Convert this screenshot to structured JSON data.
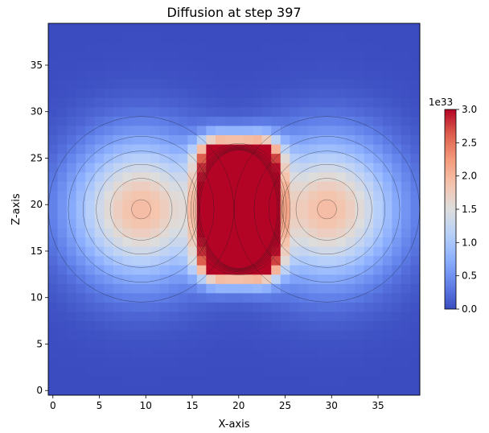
{
  "chart_data": {
    "type": "heatmap",
    "title": "Diffusion at step 397",
    "xlabel": "X-axis",
    "ylabel": "Z-axis",
    "grid_size": [
      40,
      40
    ],
    "xlim": [
      -0.5,
      39.5
    ],
    "ylim": [
      -0.5,
      39.5
    ],
    "xticks": [
      0,
      5,
      10,
      15,
      20,
      25,
      30,
      35
    ],
    "yticks": [
      0,
      5,
      10,
      15,
      20,
      25,
      30,
      35
    ],
    "colormap": "coolwarm",
    "vmin": 0,
    "vmax": 3.0,
    "colorbar": {
      "ticks": [
        0.0,
        0.5,
        1.0,
        1.5,
        2.0,
        2.5,
        3.0
      ],
      "tick_labels": [
        "0.0",
        "0.5",
        "1.0",
        "1.5",
        "2.0",
        "2.5",
        "3.0"
      ],
      "offset_label": "1e33"
    },
    "sources": [
      {
        "x": 9.5,
        "z": 19.5,
        "peak": 1.95
      },
      {
        "x": 29.5,
        "z": 19.5,
        "peak": 1.95
      },
      {
        "x": 20,
        "z": 19.5,
        "peak": 3.0,
        "saturated_x": [
          18,
          22
        ],
        "saturated_z": [
          15,
          25
        ]
      }
    ],
    "contours": true
  }
}
